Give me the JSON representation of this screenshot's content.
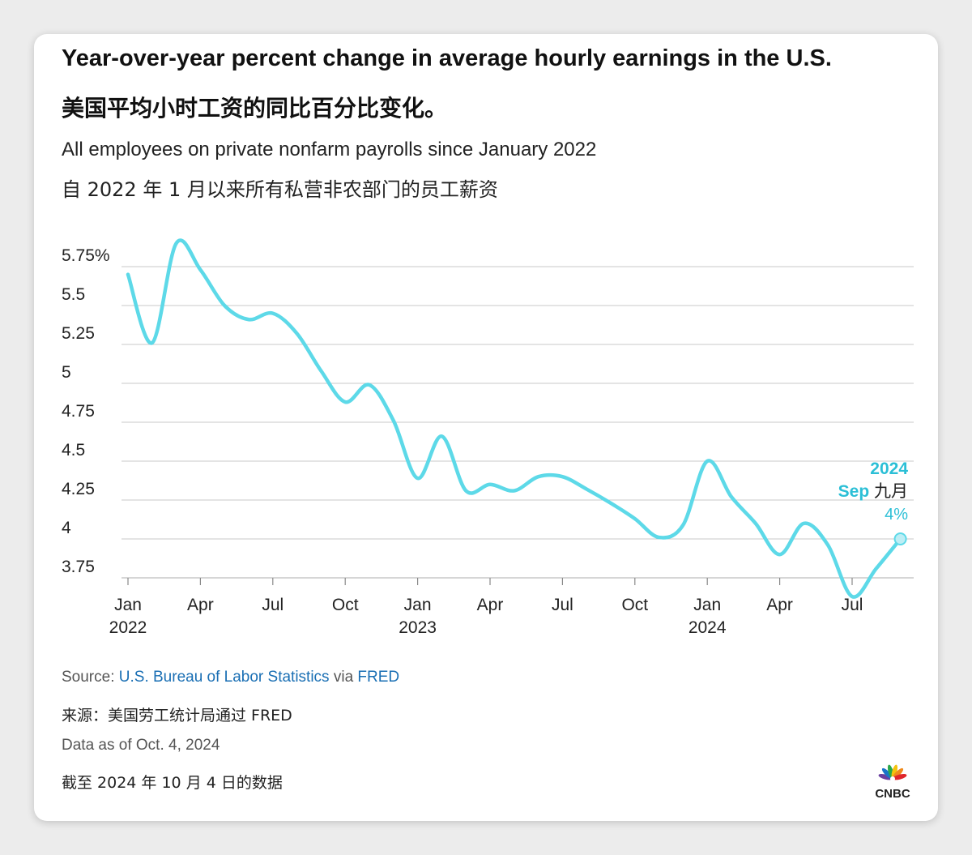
{
  "title_en": "Year-over-year percent change in average hourly earnings in the U.S.",
  "title_zh": "美国平均小时工资的同比百分比变化。",
  "subtitle_en": "All employees on private nonfarm payrolls since January 2022",
  "subtitle_zh": "自 2022 年 1 月以来所有私营非农部门的员工薪资",
  "source": {
    "prefix": "Source: ",
    "link1": "U.S. Bureau of Labor Statistics",
    "mid": " via ",
    "link2": "FRED"
  },
  "source_zh": "来源：美国劳工统计局通过 FRED",
  "data_as_of": "Data as of Oct. 4, 2024",
  "data_as_of_zh": "截至 2024 年 10 月 4 日的数据",
  "logo_text": "CNBC",
  "colors": {
    "line": "#5dd9e8",
    "annotation": "#2bbfd6",
    "grid": "#c9c9c9",
    "text": "#222222"
  },
  "chart_data": {
    "type": "line",
    "title": "Year-over-year percent change in average hourly earnings in the U.S.",
    "xlabel": "",
    "ylabel": "",
    "ylim": [
      3.75,
      5.75
    ],
    "yticks": [
      5.75,
      5.5,
      5.25,
      5,
      4.75,
      4.5,
      4.25,
      4,
      3.75
    ],
    "ytick_labels": [
      "5.75%",
      "5.5",
      "5.25",
      "5",
      "4.75",
      "4.5",
      "4.25",
      "4",
      "3.75"
    ],
    "xticks": [
      {
        "index": 0,
        "label": "Jan",
        "sublabel": "2022"
      },
      {
        "index": 3,
        "label": "Apr",
        "sublabel": ""
      },
      {
        "index": 6,
        "label": "Jul",
        "sublabel": ""
      },
      {
        "index": 9,
        "label": "Oct",
        "sublabel": ""
      },
      {
        "index": 12,
        "label": "Jan",
        "sublabel": "2023"
      },
      {
        "index": 15,
        "label": "Apr",
        "sublabel": ""
      },
      {
        "index": 18,
        "label": "Jul",
        "sublabel": ""
      },
      {
        "index": 21,
        "label": "Oct",
        "sublabel": ""
      },
      {
        "index": 24,
        "label": "Jan",
        "sublabel": "2024"
      },
      {
        "index": 27,
        "label": "Apr",
        "sublabel": ""
      },
      {
        "index": 30,
        "label": "Jul",
        "sublabel": ""
      }
    ],
    "series": [
      {
        "name": "Average hourly earnings, YoY % change",
        "x": [
          "2022-01",
          "2022-02",
          "2022-03",
          "2022-04",
          "2022-05",
          "2022-06",
          "2022-07",
          "2022-08",
          "2022-09",
          "2022-10",
          "2022-11",
          "2022-12",
          "2023-01",
          "2023-02",
          "2023-03",
          "2023-04",
          "2023-05",
          "2023-06",
          "2023-07",
          "2023-08",
          "2023-09",
          "2023-10",
          "2023-11",
          "2023-12",
          "2024-01",
          "2024-02",
          "2024-03",
          "2024-04",
          "2024-05",
          "2024-06",
          "2024-07",
          "2024-08",
          "2024-09"
        ],
        "values": [
          5.7,
          5.26,
          5.9,
          5.73,
          5.5,
          5.41,
          5.45,
          5.32,
          5.08,
          4.88,
          4.99,
          4.76,
          4.39,
          4.66,
          4.31,
          4.35,
          4.31,
          4.4,
          4.4,
          4.32,
          4.23,
          4.13,
          4.01,
          4.09,
          4.5,
          4.27,
          4.1,
          3.9,
          4.1,
          3.96,
          3.63,
          3.81,
          4.0
        ]
      }
    ],
    "annotation": {
      "year": "2024",
      "month_en": "Sep",
      "month_zh": "九月",
      "value_label": "4%",
      "value": 4.0
    }
  }
}
